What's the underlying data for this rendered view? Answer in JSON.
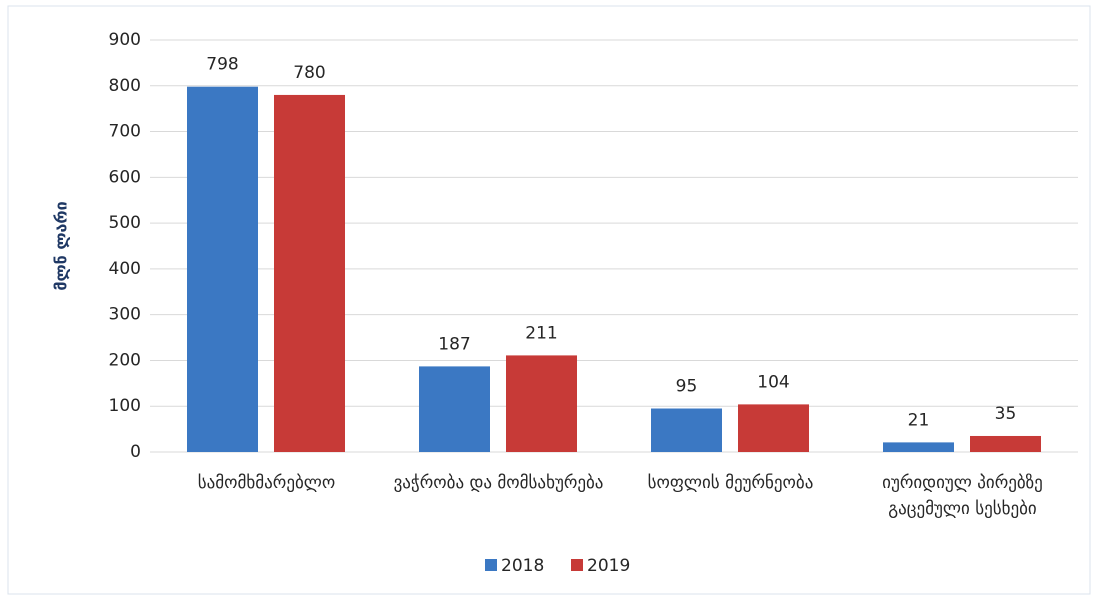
{
  "chart_data": {
    "type": "bar",
    "y_label": "მლნ ლარი",
    "categories": [
      "სამომხმარებლო",
      "ვაჭრობა და მომსახურება",
      "სოფლის მეურნეობა",
      "იურიდიულ პირებზე გაცემული სესხები"
    ],
    "series": [
      {
        "name": "2018",
        "color": "#3b78c3",
        "values": [
          798,
          187,
          95,
          21
        ]
      },
      {
        "name": "2019",
        "color": "#c73a37",
        "values": [
          780,
          211,
          104,
          35
        ]
      }
    ],
    "ylim": [
      0,
      900
    ],
    "yticks": [
      0,
      100,
      200,
      300,
      400,
      500,
      600,
      700,
      800,
      900
    ],
    "grid": true,
    "legend": "bottom"
  }
}
